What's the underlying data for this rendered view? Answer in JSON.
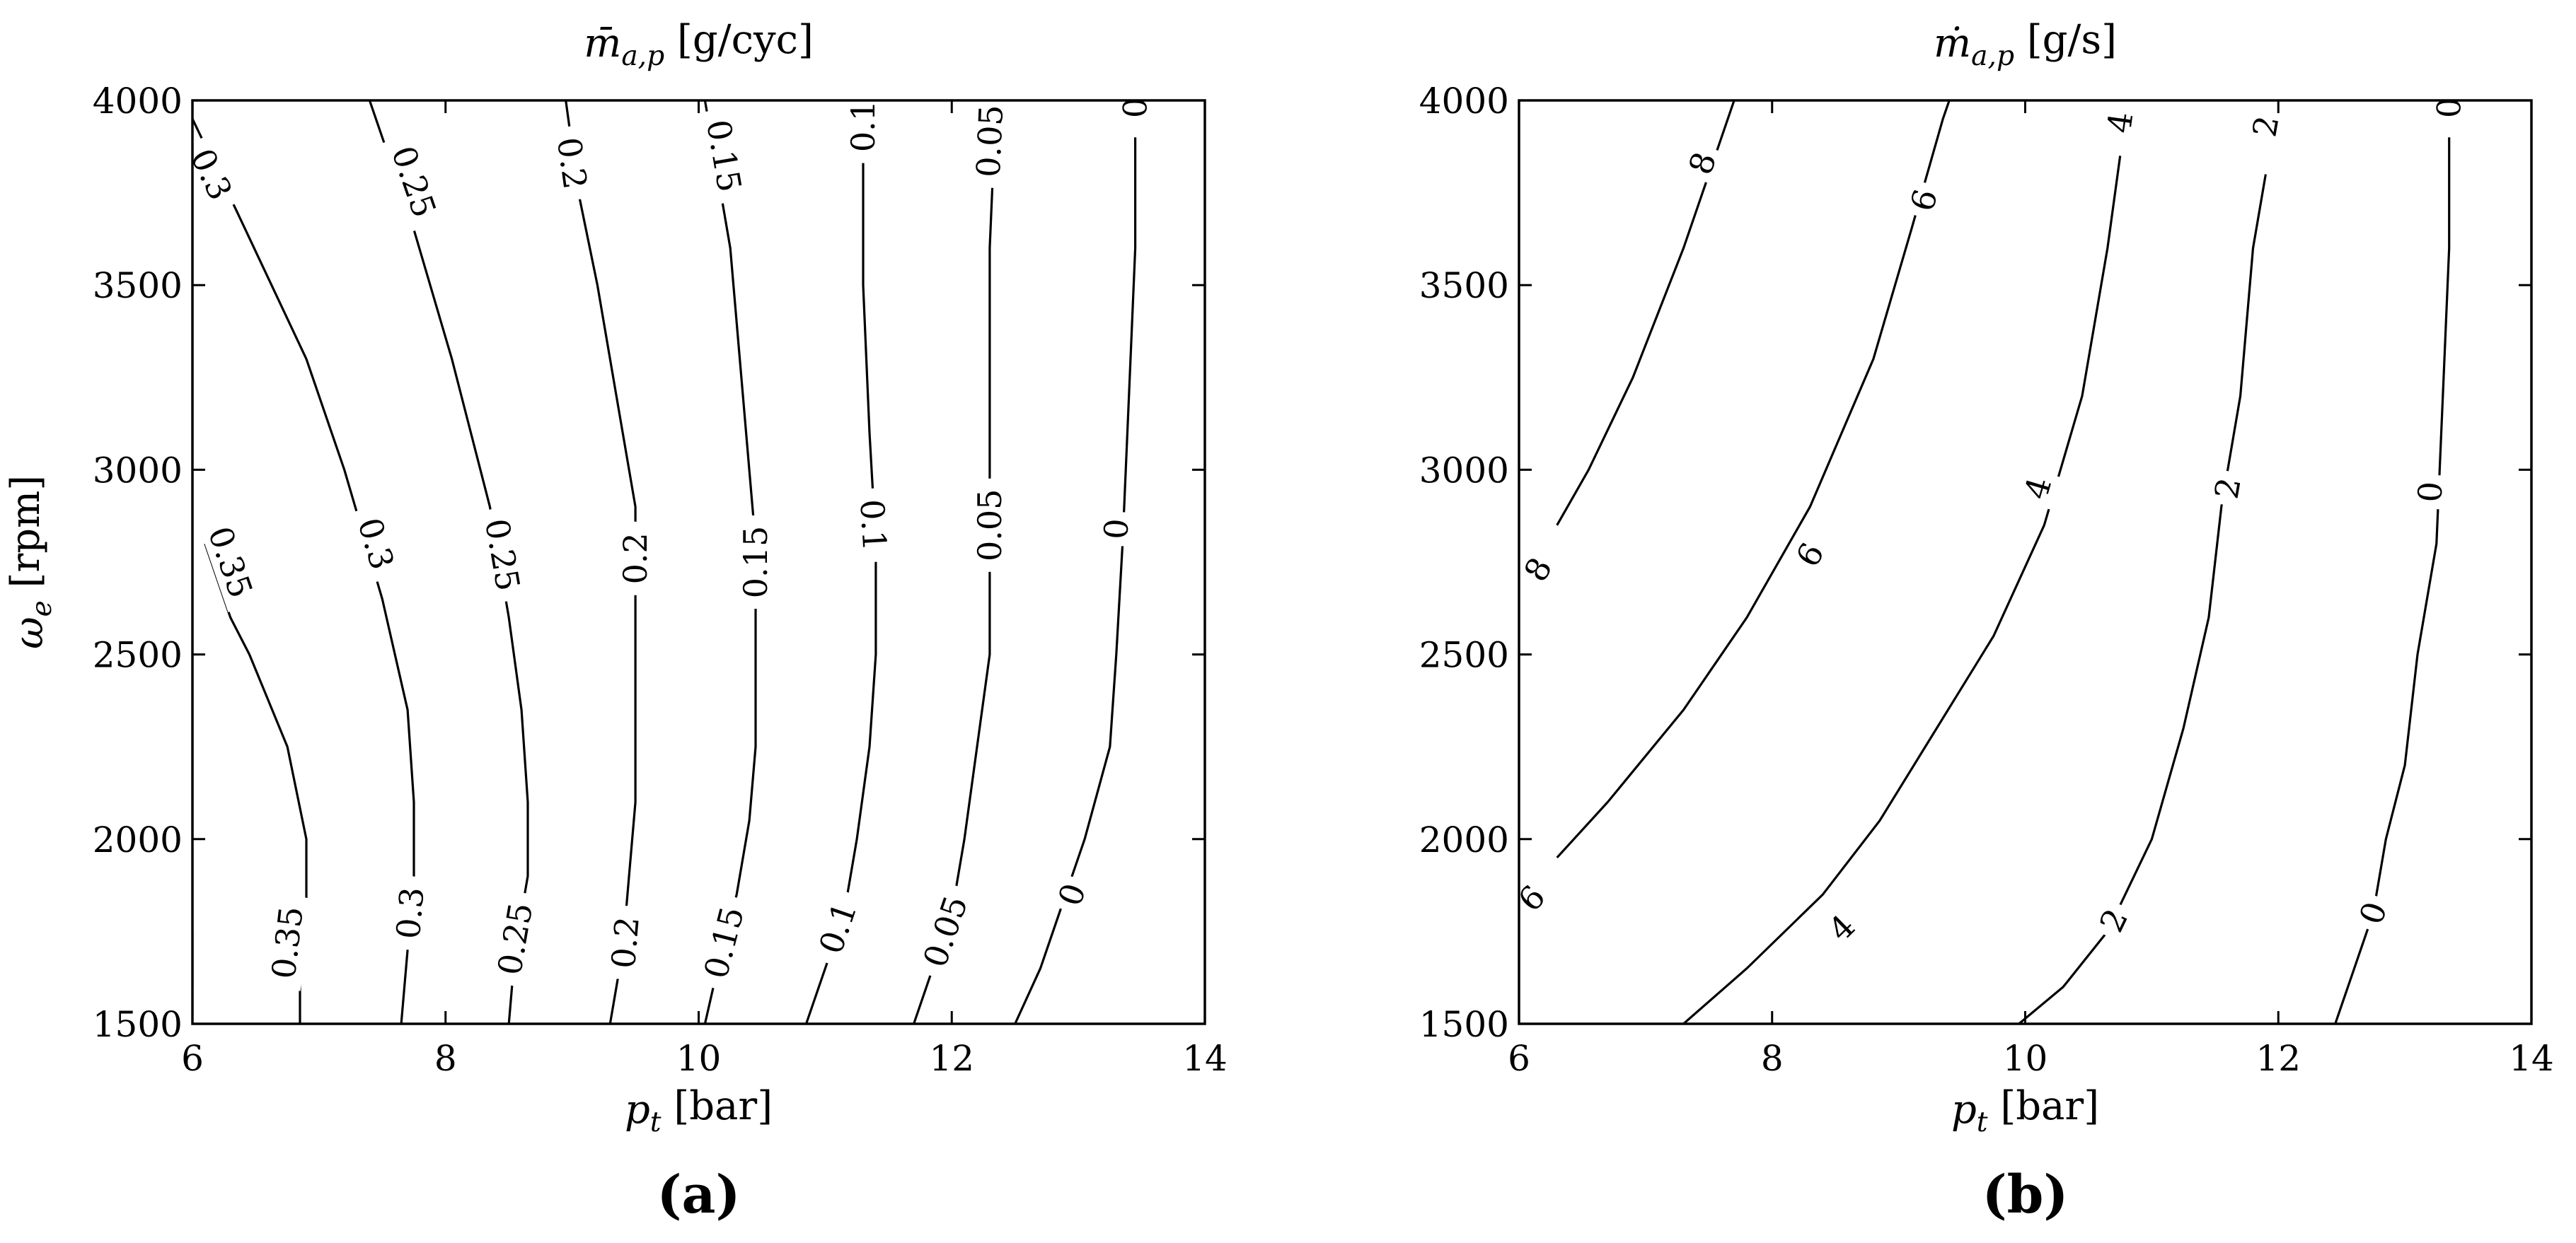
{
  "chart_data": [
    {
      "type": "contour",
      "panel_label": "(a)",
      "title": "m̄_{a,p} [g/cyc]",
      "xlabel": "p_t [bar]",
      "ylabel": "ω_e [rpm]",
      "xlim": [
        6,
        14
      ],
      "ylim": [
        1500,
        4000
      ],
      "xticks": [
        "6",
        "8",
        "10",
        "12",
        "14"
      ],
      "yticks": [
        "1500",
        "2000",
        "2500",
        "3000",
        "3500",
        "4000"
      ],
      "grid": false,
      "contours": [
        {
          "level": "0.35",
          "points": [
            [
              6.0,
              1750
            ],
            [
              6.0,
              1600
            ]
          ],
          "labels": []
        },
        {
          "level": "0.35",
          "points": [
            [
              6.85,
              1500
            ],
            [
              6.85,
              1650
            ],
            [
              6.9,
              1800
            ],
            [
              6.9,
              2000
            ],
            [
              6.75,
              2250
            ],
            [
              6.45,
              2500
            ],
            [
              6.3,
              2600
            ],
            [
              6.1,
              2800
            ]
          ],
          "labels": [
            [
              6.75,
              1720
            ],
            [
              6.3,
              2750
            ]
          ]
        },
        {
          "level": "0.3",
          "points": [
            [
              7.65,
              1500
            ],
            [
              7.7,
              1700
            ],
            [
              7.75,
              1900
            ],
            [
              7.75,
              2100
            ],
            [
              7.7,
              2350
            ],
            [
              7.5,
              2650
            ],
            [
              7.2,
              3000
            ],
            [
              6.9,
              3300
            ],
            [
              6.35,
              3700
            ],
            [
              6.0,
              3950
            ]
          ],
          "labels": [
            [
              7.72,
              1800
            ],
            [
              7.45,
              2800
            ],
            [
              6.15,
              3800
            ]
          ]
        },
        {
          "level": "0.25",
          "points": [
            [
              8.5,
              1500
            ],
            [
              8.55,
              1700
            ],
            [
              8.65,
              1900
            ],
            [
              8.65,
              2100
            ],
            [
              8.6,
              2350
            ],
            [
              8.5,
              2600
            ],
            [
              8.35,
              2900
            ],
            [
              8.05,
              3300
            ],
            [
              7.75,
              3650
            ],
            [
              7.4,
              4000
            ]
          ],
          "labels": [
            [
              8.55,
              1730
            ],
            [
              8.45,
              2770
            ],
            [
              7.75,
              3780
            ]
          ]
        },
        {
          "level": "0.2",
          "points": [
            [
              9.3,
              1500
            ],
            [
              9.4,
              1700
            ],
            [
              9.45,
              1900
            ],
            [
              9.5,
              2100
            ],
            [
              9.5,
              2350
            ],
            [
              9.5,
              2600
            ],
            [
              9.5,
              2900
            ],
            [
              9.35,
              3200
            ],
            [
              9.2,
              3500
            ],
            [
              9.05,
              3750
            ],
            [
              8.95,
              4000
            ]
          ],
          "labels": [
            [
              9.42,
              1720
            ],
            [
              9.5,
              2760
            ],
            [
              9.0,
              3830
            ]
          ]
        },
        {
          "level": "0.15",
          "points": [
            [
              10.05,
              1500
            ],
            [
              10.15,
              1650
            ],
            [
              10.3,
              1850
            ],
            [
              10.4,
              2050
            ],
            [
              10.45,
              2250
            ],
            [
              10.45,
              2500
            ],
            [
              10.45,
              2800
            ],
            [
              10.35,
              3200
            ],
            [
              10.25,
              3600
            ],
            [
              10.15,
              3800
            ],
            [
              10.05,
              4000
            ]
          ],
          "labels": [
            [
              10.2,
              1720
            ],
            [
              10.45,
              2750
            ],
            [
              10.2,
              3850
            ]
          ]
        },
        {
          "level": "0.1",
          "points": [
            [
              10.85,
              1500
            ],
            [
              11.0,
              1650
            ],
            [
              11.15,
              1800
            ],
            [
              11.25,
              2000
            ],
            [
              11.35,
              2250
            ],
            [
              11.4,
              2500
            ],
            [
              11.4,
              2800
            ],
            [
              11.35,
              3100
            ],
            [
              11.3,
              3500
            ],
            [
              11.3,
              4000
            ]
          ],
          "labels": [
            [
              11.1,
              1760
            ],
            [
              11.38,
              2850
            ],
            [
              11.3,
              3930
            ]
          ]
        },
        {
          "level": "0.05",
          "points": [
            [
              11.7,
              1500
            ],
            [
              11.85,
              1650
            ],
            [
              12.0,
              1800
            ],
            [
              12.1,
              2000
            ],
            [
              12.2,
              2250
            ],
            [
              12.3,
              2500
            ],
            [
              12.3,
              2800
            ],
            [
              12.3,
              3200
            ],
            [
              12.3,
              3600
            ],
            [
              12.35,
              4000
            ]
          ],
          "labels": [
            [
              11.95,
              1750
            ],
            [
              12.3,
              2850
            ],
            [
              12.3,
              3890
            ]
          ]
        },
        {
          "level": "0",
          "points": [
            [
              12.5,
              1500
            ],
            [
              12.7,
              1650
            ],
            [
              12.85,
              1800
            ],
            [
              13.05,
              2000
            ],
            [
              13.25,
              2250
            ],
            [
              13.3,
              2500
            ],
            [
              13.35,
              2800
            ],
            [
              13.4,
              3200
            ],
            [
              13.45,
              3600
            ],
            [
              13.45,
              3900
            ]
          ],
          "labels": [
            [
              12.95,
              1850
            ],
            [
              13.3,
              2840
            ],
            [
              13.45,
              3980
            ]
          ]
        }
      ]
    },
    {
      "type": "contour",
      "panel_label": "(b)",
      "title": "ṁ_{a,p} [g/s]",
      "xlabel": "p_t [bar]",
      "ylabel": "",
      "xlim": [
        6,
        14
      ],
      "ylim": [
        1500,
        4000
      ],
      "xticks": [
        "6",
        "8",
        "10",
        "12",
        "14"
      ],
      "yticks": [
        "1500",
        "2000",
        "2500",
        "3000",
        "3500",
        "4000"
      ],
      "grid": false,
      "contours": [
        {
          "level": "8",
          "points": [
            [
              6.3,
              2850
            ],
            [
              6.55,
              3000
            ],
            [
              6.9,
              3250
            ],
            [
              7.3,
              3600
            ],
            [
              7.55,
              3850
            ],
            [
              7.7,
              4000
            ]
          ],
          "labels": [
            [
              6.15,
              2730
            ],
            [
              7.45,
              3830
            ]
          ]
        },
        {
          "level": "6",
          "points": [
            [
              6.3,
              1950
            ],
            [
              6.7,
              2100
            ],
            [
              7.3,
              2350
            ],
            [
              7.8,
              2600
            ],
            [
              8.3,
              2900
            ],
            [
              8.8,
              3300
            ],
            [
              9.1,
              3650
            ],
            [
              9.35,
              3950
            ],
            [
              9.4,
              4000
            ]
          ],
          "labels": [
            [
              6.1,
              1840
            ],
            [
              8.3,
              2770
            ],
            [
              9.2,
              3730
            ]
          ]
        },
        {
          "level": "4",
          "points": [
            [
              7.3,
              1500
            ],
            [
              7.8,
              1650
            ],
            [
              8.4,
              1850
            ],
            [
              8.85,
              2050
            ],
            [
              9.3,
              2300
            ],
            [
              9.75,
              2550
            ],
            [
              10.15,
              2850
            ],
            [
              10.45,
              3200
            ],
            [
              10.65,
              3600
            ],
            [
              10.75,
              3850
            ]
          ],
          "labels": [
            [
              8.55,
              1760
            ],
            [
              10.1,
              2950
            ],
            [
              10.75,
              3940
            ]
          ]
        },
        {
          "level": "2",
          "points": [
            [
              9.95,
              1500
            ],
            [
              10.3,
              1600
            ],
            [
              10.65,
              1750
            ],
            [
              11.0,
              2000
            ],
            [
              11.25,
              2300
            ],
            [
              11.45,
              2600
            ],
            [
              11.55,
              2900
            ],
            [
              11.7,
              3200
            ],
            [
              11.8,
              3600
            ],
            [
              11.9,
              3800
            ]
          ],
          "labels": [
            [
              10.7,
              1780
            ],
            [
              11.6,
              2950
            ],
            [
              11.9,
              3930
            ]
          ]
        },
        {
          "level": "0",
          "points": [
            [
              12.45,
              1500
            ],
            [
              12.6,
              1650
            ],
            [
              12.75,
              1800
            ],
            [
              12.85,
              2000
            ],
            [
              13.0,
              2200
            ],
            [
              13.1,
              2500
            ],
            [
              13.25,
              2800
            ],
            [
              13.3,
              3200
            ],
            [
              13.35,
              3600
            ],
            [
              13.35,
              3900
            ]
          ],
          "labels": [
            [
              12.75,
              1800
            ],
            [
              13.2,
              2940
            ],
            [
              13.35,
              3980
            ]
          ]
        }
      ]
    }
  ]
}
